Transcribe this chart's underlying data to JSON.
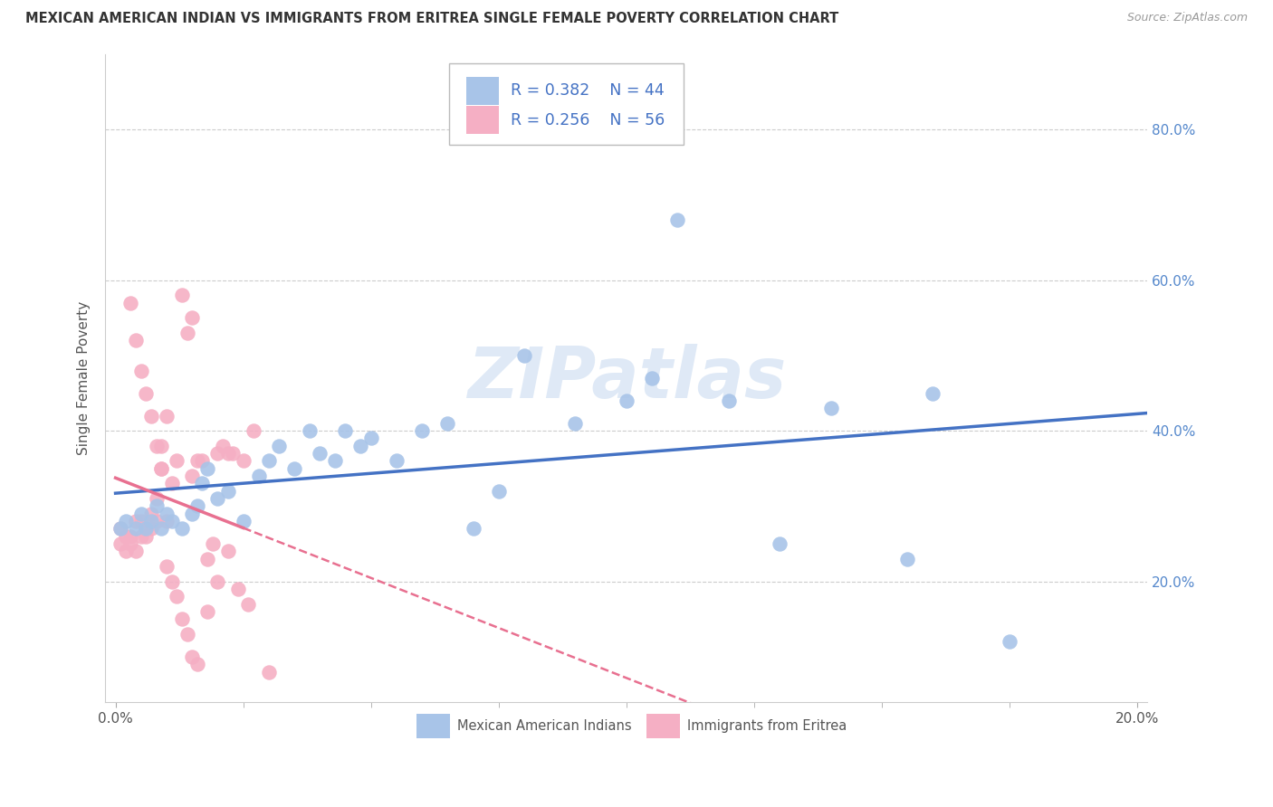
{
  "title": "MEXICAN AMERICAN INDIAN VS IMMIGRANTS FROM ERITREA SINGLE FEMALE POVERTY CORRELATION CHART",
  "source": "Source: ZipAtlas.com",
  "ylabel": "Single Female Poverty",
  "xlim": [
    -0.002,
    0.202
  ],
  "ylim": [
    0.04,
    0.9
  ],
  "xticks": [
    0.0,
    0.05,
    0.1,
    0.15,
    0.2
  ],
  "xtick_labels": [
    "0.0%",
    "",
    "",
    "",
    "20.0%"
  ],
  "yticks": [
    0.2,
    0.4,
    0.6,
    0.8
  ],
  "ytick_labels": [
    "20.0%",
    "40.0%",
    "60.0%",
    "80.0%"
  ],
  "blue_R": 0.382,
  "blue_N": 44,
  "pink_R": 0.256,
  "pink_N": 56,
  "blue_color": "#a8c4e8",
  "pink_color": "#f5afc4",
  "blue_line_color": "#4472c4",
  "pink_line_color": "#e87090",
  "blue_label": "Mexican American Indians",
  "pink_label": "Immigrants from Eritrea",
  "legend_text_color": "#4472c4",
  "watermark": "ZIPatlas",
  "blue_x": [
    0.001,
    0.002,
    0.004,
    0.005,
    0.006,
    0.007,
    0.008,
    0.009,
    0.01,
    0.011,
    0.013,
    0.015,
    0.016,
    0.017,
    0.018,
    0.02,
    0.022,
    0.025,
    0.028,
    0.03,
    0.032,
    0.035,
    0.038,
    0.04,
    0.043,
    0.045,
    0.048,
    0.05,
    0.055,
    0.06,
    0.065,
    0.07,
    0.075,
    0.08,
    0.09,
    0.1,
    0.105,
    0.11,
    0.12,
    0.13,
    0.14,
    0.155,
    0.16,
    0.175
  ],
  "blue_y": [
    0.27,
    0.28,
    0.27,
    0.29,
    0.27,
    0.28,
    0.3,
    0.27,
    0.29,
    0.28,
    0.27,
    0.29,
    0.3,
    0.33,
    0.35,
    0.31,
    0.32,
    0.28,
    0.34,
    0.36,
    0.38,
    0.35,
    0.4,
    0.37,
    0.36,
    0.4,
    0.38,
    0.39,
    0.36,
    0.4,
    0.41,
    0.27,
    0.32,
    0.5,
    0.41,
    0.44,
    0.47,
    0.68,
    0.44,
    0.25,
    0.43,
    0.23,
    0.45,
    0.12
  ],
  "pink_x": [
    0.001,
    0.001,
    0.002,
    0.002,
    0.003,
    0.003,
    0.004,
    0.004,
    0.005,
    0.005,
    0.006,
    0.006,
    0.007,
    0.007,
    0.008,
    0.008,
    0.009,
    0.009,
    0.01,
    0.01,
    0.011,
    0.012,
    0.013,
    0.014,
    0.015,
    0.015,
    0.016,
    0.017,
    0.018,
    0.019,
    0.02,
    0.021,
    0.022,
    0.023,
    0.025,
    0.027,
    0.003,
    0.004,
    0.005,
    0.006,
    0.007,
    0.008,
    0.009,
    0.01,
    0.011,
    0.012,
    0.013,
    0.014,
    0.015,
    0.016,
    0.018,
    0.02,
    0.022,
    0.024,
    0.026,
    0.03
  ],
  "pink_y": [
    0.27,
    0.25,
    0.26,
    0.24,
    0.26,
    0.25,
    0.28,
    0.24,
    0.28,
    0.26,
    0.27,
    0.26,
    0.27,
    0.29,
    0.28,
    0.31,
    0.35,
    0.38,
    0.28,
    0.42,
    0.33,
    0.36,
    0.58,
    0.53,
    0.34,
    0.55,
    0.36,
    0.36,
    0.23,
    0.25,
    0.37,
    0.38,
    0.37,
    0.37,
    0.36,
    0.4,
    0.57,
    0.52,
    0.48,
    0.45,
    0.42,
    0.38,
    0.35,
    0.22,
    0.2,
    0.18,
    0.15,
    0.13,
    0.1,
    0.09,
    0.16,
    0.2,
    0.24,
    0.19,
    0.17,
    0.08
  ]
}
